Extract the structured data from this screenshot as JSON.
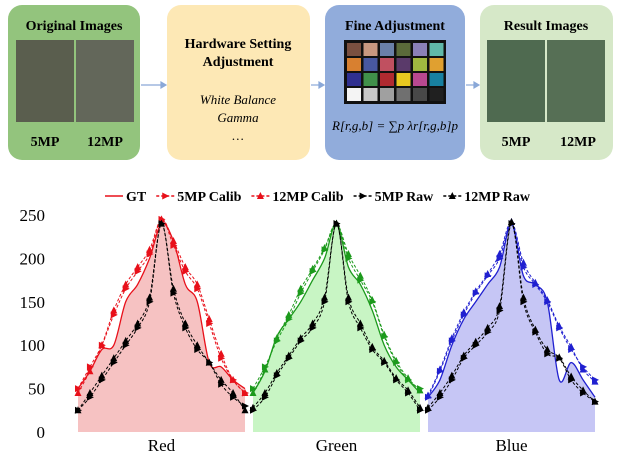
{
  "diagram": {
    "boxes": [
      {
        "title": [
          "Original Images"
        ],
        "labels": [
          "5MP",
          "12MP"
        ]
      },
      {
        "title": [
          "Hardware Setting",
          "Adjustment"
        ],
        "items": [
          "White Balance",
          "Gamma",
          "…"
        ]
      },
      {
        "title": [
          "Fine Adjustment"
        ],
        "formula": "R[r,g,b] = ∑p λr[r,g,b]p"
      },
      {
        "title": [
          "Result Images"
        ],
        "labels": [
          "5MP",
          "12MP"
        ]
      }
    ]
  },
  "chart_data": {
    "type": "line",
    "categories": [
      "Red",
      "Green",
      "Blue"
    ],
    "category_colors": [
      "#e8101a",
      "#1c9a1c",
      "#2020d0"
    ],
    "fill_colors": [
      "#f6c2c2",
      "#c8f5c4",
      "#c6c6f5"
    ],
    "ylim": [
      0,
      250
    ],
    "yticks": [
      0,
      50,
      100,
      150,
      200,
      250
    ],
    "series": [
      {
        "name": "GT",
        "dash": "solid",
        "marker": "none",
        "fill": true,
        "values": [
          [
            50,
            70,
            95,
            100,
            150,
            170,
            200,
            240,
            220,
            170,
            150,
            80,
            75,
            60,
            50
          ],
          [
            45,
            70,
            110,
            130,
            150,
            175,
            200,
            240,
            190,
            170,
            140,
            100,
            75,
            60,
            45
          ],
          [
            40,
            60,
            100,
            130,
            150,
            170,
            190,
            240,
            180,
            170,
            150,
            60,
            80,
            60,
            40
          ]
        ]
      },
      {
        "name": "5MP Calib",
        "dash": "dashed",
        "marker": "right",
        "values": [
          [
            50,
            75,
            100,
            135,
            165,
            185,
            205,
            245,
            215,
            185,
            165,
            125,
            85,
            60,
            45
          ],
          [
            50,
            75,
            105,
            130,
            160,
            185,
            210,
            240,
            200,
            175,
            150,
            110,
            80,
            60,
            50
          ],
          [
            40,
            70,
            105,
            135,
            160,
            180,
            200,
            240,
            190,
            170,
            150,
            120,
            95,
            75,
            60
          ]
        ]
      },
      {
        "name": "12MP Calib",
        "dash": "dashed",
        "marker": "up",
        "values": [
          [
            45,
            70,
            100,
            140,
            170,
            190,
            210,
            245,
            220,
            190,
            170,
            130,
            90,
            60,
            45
          ],
          [
            45,
            72,
            108,
            135,
            165,
            188,
            212,
            240,
            205,
            180,
            152,
            112,
            82,
            62,
            48
          ],
          [
            42,
            72,
            108,
            138,
            162,
            182,
            205,
            242,
            195,
            172,
            152,
            122,
            98,
            72,
            58
          ]
        ]
      },
      {
        "name": "5MP Raw",
        "dash": "dashed",
        "color": "#000000",
        "marker": "right",
        "values": [
          [
            25,
            40,
            60,
            80,
            100,
            120,
            150,
            240,
            160,
            120,
            95,
            80,
            55,
            40,
            30
          ],
          [
            25,
            40,
            65,
            85,
            105,
            120,
            150,
            240,
            150,
            120,
            95,
            80,
            60,
            45,
            25
          ],
          [
            25,
            40,
            60,
            85,
            100,
            115,
            140,
            240,
            150,
            115,
            90,
            85,
            60,
            45,
            35
          ]
        ]
      },
      {
        "name": "12MP Raw",
        "dash": "dashed",
        "color": "#000000",
        "marker": "up",
        "values": [
          [
            25,
            45,
            65,
            85,
            105,
            125,
            155,
            240,
            165,
            125,
            100,
            80,
            60,
            45,
            25
          ],
          [
            28,
            45,
            68,
            88,
            108,
            125,
            155,
            240,
            155,
            125,
            98,
            82,
            62,
            48,
            28
          ],
          [
            28,
            45,
            65,
            88,
            104,
            120,
            145,
            242,
            155,
            118,
            95,
            86,
            64,
            48,
            35
          ]
        ]
      }
    ]
  }
}
